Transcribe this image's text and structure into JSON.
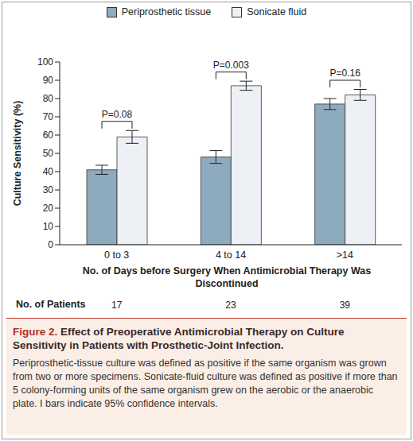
{
  "chart_data": {
    "type": "bar",
    "legend": "top",
    "grid": false,
    "categories": [
      "0 to 3",
      "4 to 14",
      ">14"
    ],
    "series": [
      {
        "name": "Periprosthetic tissue",
        "color": "#8eabbd",
        "values": [
          41,
          48,
          77
        ],
        "error": [
          2.5,
          3.5,
          3
        ]
      },
      {
        "name": "Sonicate fluid",
        "color": "#edf1f6",
        "values": [
          59,
          87,
          82
        ],
        "error": [
          3.5,
          2.5,
          3
        ]
      }
    ],
    "ylabel": "Culture Sensitivity (%)",
    "xlabel": "No. of Days before Surgery When Antimicrobial Therapy Was Discontinued",
    "ylim": [
      0,
      100
    ],
    "yticks": [
      0,
      10,
      20,
      30,
      40,
      50,
      60,
      70,
      80,
      90,
      100
    ],
    "annotations": [
      "P=0.08",
      "P=0.003",
      "P=0.16"
    ],
    "patients_label": "No. of Patients",
    "patients": [
      17,
      23,
      39
    ],
    "figure_label": "Figure 2.",
    "figure_title": "Effect of Preoperative Antimicrobial Therapy on Culture Sensitivity in Patients with Prosthetic-Joint Infection.",
    "caption": "Periprosthetic-tissue culture was defined as positive if the same organism was grown from two or more specimens. Sonicate-fluid culture was defined as positive if more than 5 colony-forming units of the same organism grew on the aerobic or the anaerobic plate. I bars indicate 95% confidence intervals."
  }
}
